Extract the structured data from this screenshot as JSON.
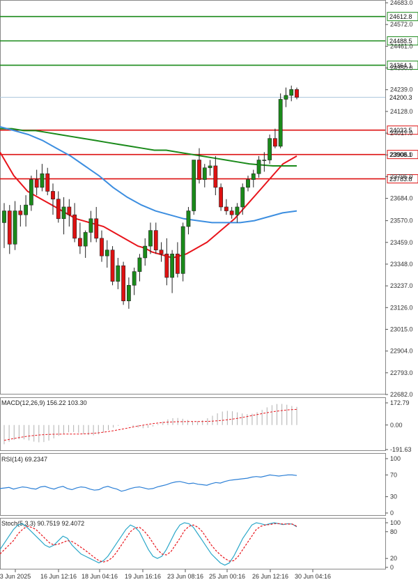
{
  "chart_data": [
    {
      "type": "candlestick",
      "panel": "price",
      "x_tick_labels": [
        "3 Jun 2025",
        "16 Jun 12:16",
        "18 Jun 04:16",
        "19 Jun 16:16",
        "23 Jun 08:16",
        "25 Jun 00:16",
        "26 Jun 12:16",
        "30 Jun 04:16"
      ],
      "y_tick_labels": [
        "24683.0",
        "24572.0",
        "24461.0",
        "24350.0",
        "24239.0",
        "24128.0",
        "24017.0",
        "23906.0",
        "23795.0",
        "23684.0",
        "23570.0",
        "23459.0",
        "23348.0",
        "23237.0",
        "23126.0",
        "23015.0",
        "22904.0",
        "22793.0",
        "22682.0"
      ],
      "ylim": [
        22682,
        24683
      ],
      "current_price": "24200.3",
      "levels": [
        {
          "value": 24612.8,
          "label": "24612.8",
          "color": "#1a8a1a"
        },
        {
          "value": 24488.5,
          "label": "24488.5",
          "color": "#1a8a1a"
        },
        {
          "value": 24364.1,
          "label": "24364.1",
          "color": "#1a8a1a"
        },
        {
          "value": 24032.5,
          "label": "24032.5",
          "color": "#dd1111"
        },
        {
          "value": 23908.1,
          "label": "23908.1",
          "color": "#dd1111"
        },
        {
          "value": 23783.8,
          "label": "23783.8",
          "color": "#dd1111"
        }
      ],
      "candles": [
        [
          23560,
          23660,
          23430,
          23620
        ],
        [
          23620,
          23650,
          23400,
          23450
        ],
        [
          23450,
          23670,
          23420,
          23620
        ],
        [
          23620,
          23650,
          23540,
          23600
        ],
        [
          23600,
          23700,
          23540,
          23650
        ],
        [
          23650,
          23800,
          23620,
          23780
        ],
        [
          23780,
          23830,
          23700,
          23740
        ],
        [
          23740,
          23860,
          23720,
          23810
        ],
        [
          23810,
          23840,
          23700,
          23720
        ],
        [
          23720,
          23760,
          23600,
          23680
        ],
        [
          23680,
          23720,
          23560,
          23580
        ],
        [
          23580,
          23690,
          23500,
          23640
        ],
        [
          23640,
          23680,
          23540,
          23600
        ],
        [
          23600,
          23660,
          23460,
          23480
        ],
        [
          23480,
          23560,
          23400,
          23440
        ],
        [
          23440,
          23520,
          23380,
          23510
        ],
        [
          23510,
          23620,
          23460,
          23580
        ],
        [
          23580,
          23640,
          23460,
          23480
        ],
        [
          23480,
          23520,
          23360,
          23390
        ],
        [
          23390,
          23470,
          23330,
          23420
        ],
        [
          23420,
          23440,
          23240,
          23260
        ],
        [
          23260,
          23380,
          23220,
          23340
        ],
        [
          23340,
          23360,
          23140,
          23160
        ],
        [
          23160,
          23280,
          23120,
          23240
        ],
        [
          23240,
          23330,
          23190,
          23310
        ],
        [
          23310,
          23400,
          23260,
          23380
        ],
        [
          23380,
          23480,
          23340,
          23440
        ],
        [
          23440,
          23560,
          23400,
          23520
        ],
        [
          23520,
          23560,
          23400,
          23420
        ],
        [
          23420,
          23460,
          23360,
          23400
        ],
        [
          23400,
          23480,
          23240,
          23280
        ],
        [
          23280,
          23420,
          23200,
          23400
        ],
        [
          23400,
          23460,
          23280,
          23300
        ],
        [
          23300,
          23560,
          23260,
          23540
        ],
        [
          23540,
          23640,
          23500,
          23620
        ],
        [
          23620,
          23880,
          23600,
          23880
        ],
        [
          23880,
          23940,
          23760,
          23780
        ],
        [
          23780,
          23860,
          23740,
          23840
        ],
        [
          23840,
          23880,
          23800,
          23850
        ],
        [
          23850,
          23900,
          23700,
          23740
        ],
        [
          23740,
          23760,
          23620,
          23640
        ],
        [
          23640,
          23680,
          23600,
          23620
        ],
        [
          23620,
          23640,
          23580,
          23600
        ],
        [
          23600,
          23660,
          23560,
          23640
        ],
        [
          23640,
          23760,
          23600,
          23740
        ],
        [
          23740,
          23800,
          23720,
          23780
        ],
        [
          23780,
          23830,
          23740,
          23810
        ],
        [
          23810,
          23900,
          23790,
          23880
        ],
        [
          23880,
          23920,
          23820,
          23880
        ],
        [
          23880,
          24010,
          23860,
          23990
        ],
        [
          23990,
          24040,
          23940,
          23950
        ],
        [
          23950,
          24220,
          23940,
          24190
        ],
        [
          24190,
          24250,
          24150,
          24210
        ],
        [
          24210,
          24260,
          24180,
          24240
        ],
        [
          24240,
          24250,
          24190,
          24200
        ]
      ],
      "ma_red": [
        23920,
        23860,
        23800,
        23760,
        23720,
        23700,
        23680,
        23660,
        23640,
        23620,
        23600,
        23580,
        23570,
        23560,
        23550,
        23540,
        23520,
        23500,
        23480,
        23460,
        23440,
        23430,
        23410,
        23400,
        23390,
        23380,
        23390,
        23400,
        23420,
        23440,
        23460,
        23490,
        23520,
        23550,
        23580,
        23620,
        23660,
        23700,
        23740,
        23780,
        23820,
        23860,
        23880,
        23900
      ],
      "ma_green": [
        24040,
        24040,
        24030,
        24030,
        24020,
        24010,
        24000,
        23990,
        23980,
        23970,
        23960,
        23950,
        23940,
        23930,
        23930,
        23920,
        23910,
        23900,
        23890,
        23880,
        23870,
        23860,
        23855,
        23850,
        23850,
        23850
      ],
      "ma_blue": [
        24050,
        24030,
        24010,
        23980,
        23940,
        23900,
        23850,
        23800,
        23740,
        23690,
        23650,
        23620,
        23600,
        23580,
        23570,
        23560,
        23560,
        23560,
        23570,
        23590,
        23610,
        23620
      ]
    },
    {
      "type": "histogram",
      "panel": "macd",
      "title": "MACD(12,26,9) 156.22 103.30",
      "y_tick_labels": [
        "172.79",
        "0.00",
        "-191.63"
      ],
      "ylim": [
        -191.63,
        172.79
      ]
    },
    {
      "type": "line",
      "panel": "rsi",
      "title": "RSI(14) 69.2347",
      "y_tick_labels": [
        "100",
        "70",
        "30",
        "0"
      ],
      "ylim": [
        0,
        100
      ],
      "values": [
        45,
        46,
        47,
        44,
        46,
        48,
        47,
        45,
        44,
        48,
        49,
        46,
        44,
        47,
        49,
        45,
        43,
        46,
        48,
        47,
        44,
        42,
        43,
        47,
        49,
        46,
        44,
        40,
        42,
        45,
        47,
        48,
        46,
        44,
        45,
        48,
        50,
        52,
        55,
        57,
        58,
        56,
        54,
        55,
        53,
        52,
        51,
        54,
        56,
        55,
        58,
        60,
        61,
        62,
        63,
        64,
        66,
        67,
        66,
        68,
        70,
        69,
        68,
        69,
        70,
        70,
        69
      ]
    },
    {
      "type": "line",
      "panel": "stoch",
      "title": "Stoch(5,3,3) 90.7519 92.4072",
      "y_tick_labels": [
        "100",
        "80",
        "20",
        "0"
      ],
      "ylim": [
        0,
        100
      ],
      "k": [
        40,
        55,
        70,
        85,
        95,
        98,
        90,
        80,
        70,
        60,
        50,
        45,
        50,
        60,
        70,
        65,
        50,
        40,
        30,
        25,
        20,
        15,
        10,
        15,
        25,
        40,
        55,
        70,
        85,
        95,
        90,
        80,
        60,
        40,
        25,
        20,
        25,
        40,
        60,
        80,
        95,
        100,
        98,
        90,
        75,
        60,
        45,
        30,
        20,
        10,
        5,
        10,
        25,
        45,
        65,
        80,
        95,
        100,
        98,
        95,
        98,
        100,
        98,
        96,
        98,
        97,
        91
      ],
      "d": [
        30,
        40,
        50,
        60,
        75,
        85,
        92,
        90,
        85,
        75,
        65,
        55,
        50,
        52,
        56,
        60,
        58,
        52,
        45,
        38,
        30,
        22,
        15,
        12,
        15,
        22,
        35,
        50,
        65,
        80,
        88,
        90,
        82,
        70,
        55,
        40,
        30,
        28,
        35,
        50,
        65,
        82,
        92,
        95,
        90,
        80,
        65,
        50,
        38,
        28,
        20,
        14,
        15,
        25,
        40,
        55,
        70,
        85,
        92,
        95,
        96,
        98,
        98,
        97,
        97,
        97,
        92
      ]
    }
  ],
  "colors": {
    "bull": "#1a8a1a",
    "bear": "#dd1111",
    "ma_red": "#e8141b",
    "ma_green": "#1a8a1a",
    "ma_blue": "#3c8ee0",
    "rsi": "#2b7fd6",
    "stoch_k": "#2aa7c9",
    "stoch_d": "#e8141b",
    "axis": "#555555",
    "grid": "#cfd8e0",
    "current": "#a9c4dc"
  }
}
